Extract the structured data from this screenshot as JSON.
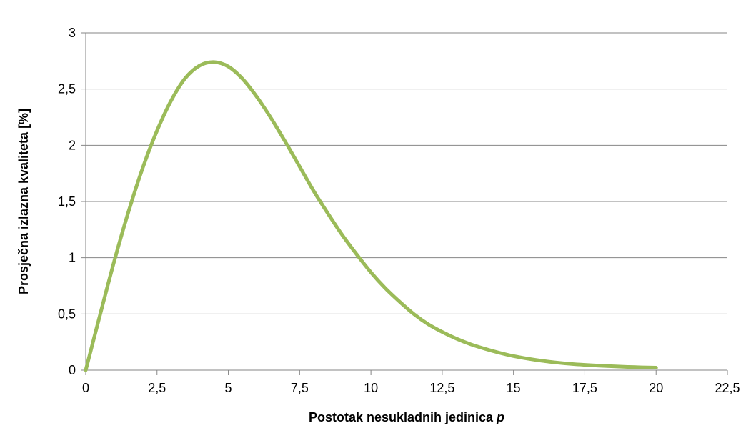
{
  "chart_data": {
    "type": "line",
    "title": "",
    "xlabel": "Postotak nesukladnih jedinica",
    "xlabel_var": "p",
    "ylabel": "Prosječna izlazna kvaliteta [%]",
    "xlim": [
      0,
      22.5
    ],
    "ylim": [
      0,
      3
    ],
    "xticks": [
      0,
      2.5,
      5,
      7.5,
      10,
      12.5,
      15,
      17.5,
      20,
      22.5
    ],
    "xtick_labels": [
      "0",
      "2,5",
      "5",
      "7,5",
      "10",
      "12,5",
      "15",
      "17,5",
      "20",
      "22,5"
    ],
    "yticks": [
      0,
      0.5,
      1,
      1.5,
      2,
      2.5,
      3
    ],
    "ytick_labels": [
      "0",
      "0,5",
      "1",
      "1,5",
      "2",
      "2,5",
      "3"
    ],
    "grid": true,
    "legend": false,
    "colors": {
      "series": "#9bbb59",
      "grid": "#868686",
      "axis": "#868686",
      "frame": "#d9d9d9"
    },
    "series": [
      {
        "x": [
          0,
          0.5,
          1,
          1.5,
          2,
          2.5,
          3,
          3.5,
          4,
          4.5,
          5,
          5.5,
          6,
          6.5,
          7,
          7.5,
          8,
          8.5,
          9,
          9.5,
          10,
          10.5,
          11,
          11.5,
          12,
          12.5,
          13,
          13.5,
          14,
          14.5,
          15,
          15.5,
          16,
          16.5,
          17,
          17.5,
          18,
          18.5,
          19,
          19.5,
          20
        ],
        "y": [
          0,
          0.49,
          0.97,
          1.41,
          1.8,
          2.13,
          2.4,
          2.6,
          2.71,
          2.74,
          2.7,
          2.59,
          2.43,
          2.24,
          2.03,
          1.81,
          1.59,
          1.39,
          1.2,
          1.03,
          0.87,
          0.73,
          0.61,
          0.5,
          0.41,
          0.34,
          0.28,
          0.23,
          0.19,
          0.155,
          0.125,
          0.102,
          0.083,
          0.068,
          0.056,
          0.047,
          0.04,
          0.034,
          0.029,
          0.025,
          0.022
        ]
      }
    ]
  }
}
